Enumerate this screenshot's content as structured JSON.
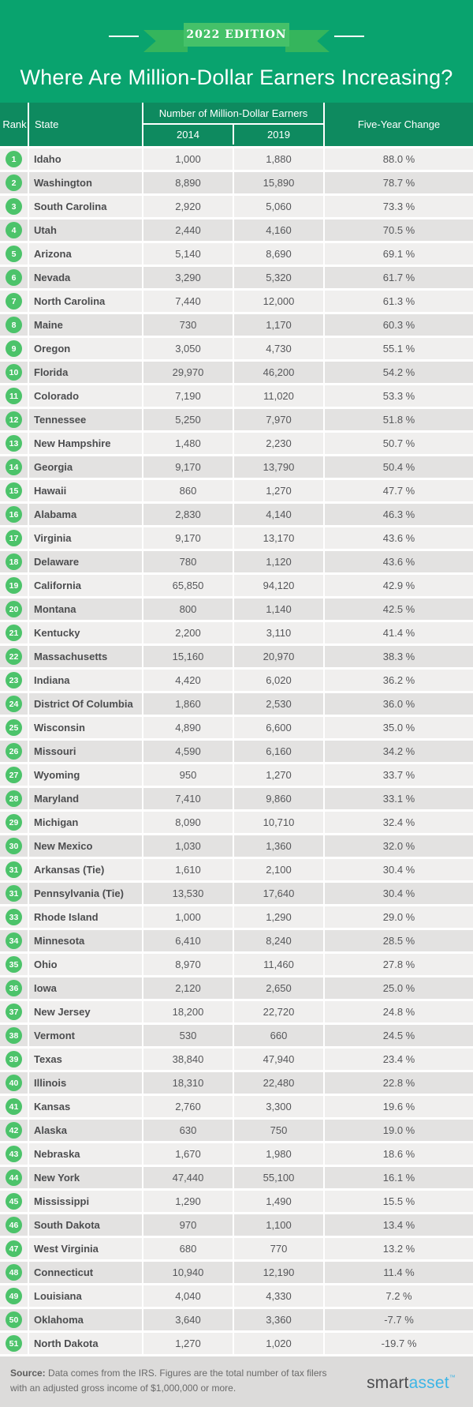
{
  "edition_badge": "2022 EDITION",
  "title": "Where Are Million-Dollar Earners Increasing?",
  "table_header": {
    "rank": "Rank",
    "state": "State",
    "group": "Number of Million-Dollar Earners",
    "year_2014": "2014",
    "year_2019": "2019",
    "change": "Five-Year Change"
  },
  "chart_data": {
    "type": "table",
    "title": "Where Are Million-Dollar Earners Increasing?",
    "columns": [
      "Rank",
      "State",
      "2014",
      "2019",
      "Five-Year Change"
    ],
    "rows": [
      {
        "rank": "1",
        "state": "Idaho",
        "y2014": "1,000",
        "y2019": "1,880",
        "change": "88.0 %"
      },
      {
        "rank": "2",
        "state": "Washington",
        "y2014": "8,890",
        "y2019": "15,890",
        "change": "78.7 %"
      },
      {
        "rank": "3",
        "state": "South Carolina",
        "y2014": "2,920",
        "y2019": "5,060",
        "change": "73.3 %"
      },
      {
        "rank": "4",
        "state": "Utah",
        "y2014": "2,440",
        "y2019": "4,160",
        "change": "70.5 %"
      },
      {
        "rank": "5",
        "state": "Arizona",
        "y2014": "5,140",
        "y2019": "8,690",
        "change": "69.1 %"
      },
      {
        "rank": "6",
        "state": "Nevada",
        "y2014": "3,290",
        "y2019": "5,320",
        "change": "61.7 %"
      },
      {
        "rank": "7",
        "state": "North Carolina",
        "y2014": "7,440",
        "y2019": "12,000",
        "change": "61.3 %"
      },
      {
        "rank": "8",
        "state": "Maine",
        "y2014": "730",
        "y2019": "1,170",
        "change": "60.3 %"
      },
      {
        "rank": "9",
        "state": "Oregon",
        "y2014": "3,050",
        "y2019": "4,730",
        "change": "55.1 %"
      },
      {
        "rank": "10",
        "state": "Florida",
        "y2014": "29,970",
        "y2019": "46,200",
        "change": "54.2 %"
      },
      {
        "rank": "11",
        "state": "Colorado",
        "y2014": "7,190",
        "y2019": "11,020",
        "change": "53.3 %"
      },
      {
        "rank": "12",
        "state": "Tennessee",
        "y2014": "5,250",
        "y2019": "7,970",
        "change": "51.8 %"
      },
      {
        "rank": "13",
        "state": "New Hampshire",
        "y2014": "1,480",
        "y2019": "2,230",
        "change": "50.7 %"
      },
      {
        "rank": "14",
        "state": "Georgia",
        "y2014": "9,170",
        "y2019": "13,790",
        "change": "50.4 %"
      },
      {
        "rank": "15",
        "state": "Hawaii",
        "y2014": "860",
        "y2019": "1,270",
        "change": "47.7 %"
      },
      {
        "rank": "16",
        "state": "Alabama",
        "y2014": "2,830",
        "y2019": "4,140",
        "change": "46.3 %"
      },
      {
        "rank": "17",
        "state": "Virginia",
        "y2014": "9,170",
        "y2019": "13,170",
        "change": "43.6 %"
      },
      {
        "rank": "18",
        "state": "Delaware",
        "y2014": "780",
        "y2019": "1,120",
        "change": "43.6 %"
      },
      {
        "rank": "19",
        "state": "California",
        "y2014": "65,850",
        "y2019": "94,120",
        "change": "42.9 %"
      },
      {
        "rank": "20",
        "state": "Montana",
        "y2014": "800",
        "y2019": "1,140",
        "change": "42.5 %"
      },
      {
        "rank": "21",
        "state": "Kentucky",
        "y2014": "2,200",
        "y2019": "3,110",
        "change": "41.4 %"
      },
      {
        "rank": "22",
        "state": "Massachusetts",
        "y2014": "15,160",
        "y2019": "20,970",
        "change": "38.3 %"
      },
      {
        "rank": "23",
        "state": "Indiana",
        "y2014": "4,420",
        "y2019": "6,020",
        "change": "36.2 %"
      },
      {
        "rank": "24",
        "state": "District Of Columbia",
        "y2014": "1,860",
        "y2019": "2,530",
        "change": "36.0 %"
      },
      {
        "rank": "25",
        "state": "Wisconsin",
        "y2014": "4,890",
        "y2019": "6,600",
        "change": "35.0 %"
      },
      {
        "rank": "26",
        "state": "Missouri",
        "y2014": "4,590",
        "y2019": "6,160",
        "change": "34.2 %"
      },
      {
        "rank": "27",
        "state": "Wyoming",
        "y2014": "950",
        "y2019": "1,270",
        "change": "33.7 %"
      },
      {
        "rank": "28",
        "state": "Maryland",
        "y2014": "7,410",
        "y2019": "9,860",
        "change": "33.1 %"
      },
      {
        "rank": "29",
        "state": "Michigan",
        "y2014": "8,090",
        "y2019": "10,710",
        "change": "32.4 %"
      },
      {
        "rank": "30",
        "state": "New Mexico",
        "y2014": "1,030",
        "y2019": "1,360",
        "change": "32.0 %"
      },
      {
        "rank": "31",
        "state": "Arkansas (Tie)",
        "y2014": "1,610",
        "y2019": "2,100",
        "change": "30.4 %"
      },
      {
        "rank": "31",
        "state": "Pennsylvania (Tie)",
        "y2014": "13,530",
        "y2019": "17,640",
        "change": "30.4 %"
      },
      {
        "rank": "33",
        "state": "Rhode Island",
        "y2014": "1,000",
        "y2019": "1,290",
        "change": "29.0 %"
      },
      {
        "rank": "34",
        "state": "Minnesota",
        "y2014": "6,410",
        "y2019": "8,240",
        "change": "28.5 %"
      },
      {
        "rank": "35",
        "state": "Ohio",
        "y2014": "8,970",
        "y2019": "11,460",
        "change": "27.8 %"
      },
      {
        "rank": "36",
        "state": "Iowa",
        "y2014": "2,120",
        "y2019": "2,650",
        "change": "25.0 %"
      },
      {
        "rank": "37",
        "state": "New Jersey",
        "y2014": "18,200",
        "y2019": "22,720",
        "change": "24.8 %"
      },
      {
        "rank": "38",
        "state": "Vermont",
        "y2014": "530",
        "y2019": "660",
        "change": "24.5 %"
      },
      {
        "rank": "39",
        "state": "Texas",
        "y2014": "38,840",
        "y2019": "47,940",
        "change": "23.4 %"
      },
      {
        "rank": "40",
        "state": "Illinois",
        "y2014": "18,310",
        "y2019": "22,480",
        "change": "22.8 %"
      },
      {
        "rank": "41",
        "state": "Kansas",
        "y2014": "2,760",
        "y2019": "3,300",
        "change": "19.6 %"
      },
      {
        "rank": "42",
        "state": "Alaska",
        "y2014": "630",
        "y2019": "750",
        "change": "19.0 %"
      },
      {
        "rank": "43",
        "state": "Nebraska",
        "y2014": "1,670",
        "y2019": "1,980",
        "change": "18.6 %"
      },
      {
        "rank": "44",
        "state": "New York",
        "y2014": "47,440",
        "y2019": "55,100",
        "change": "16.1 %"
      },
      {
        "rank": "45",
        "state": "Mississippi",
        "y2014": "1,290",
        "y2019": "1,490",
        "change": "15.5 %"
      },
      {
        "rank": "46",
        "state": "South Dakota",
        "y2014": "970",
        "y2019": "1,100",
        "change": "13.4 %"
      },
      {
        "rank": "47",
        "state": "West Virginia",
        "y2014": "680",
        "y2019": "770",
        "change": "13.2 %"
      },
      {
        "rank": "48",
        "state": "Connecticut",
        "y2014": "10,940",
        "y2019": "12,190",
        "change": "11.4 %"
      },
      {
        "rank": "49",
        "state": "Louisiana",
        "y2014": "4,040",
        "y2019": "4,330",
        "change": "7.2 %"
      },
      {
        "rank": "50",
        "state": "Oklahoma",
        "y2014": "3,640",
        "y2019": "3,360",
        "change": "-7.7 %"
      },
      {
        "rank": "51",
        "state": "North Dakota",
        "y2014": "1,270",
        "y2019": "1,020",
        "change": "-19.7 %"
      }
    ]
  },
  "footer": {
    "source_label": "Source:",
    "source_line1": " Data comes from the IRS. Figures are the total number of tax filers",
    "source_line2": "with an adjusted gross income of $1,000,000 or more.",
    "logo_smart": "smart",
    "logo_asset": "asset",
    "logo_tm": "™"
  },
  "colors": {
    "hero_green": "#09a36e",
    "header_green": "#0e8a5f",
    "ribbon_green": "#45c169",
    "badge_green": "#4cc36a",
    "row_light": "#f0efee",
    "row_dark": "#e3e2e1",
    "footer_gray": "#dcdbda",
    "logo_blue": "#3cb5e6"
  }
}
